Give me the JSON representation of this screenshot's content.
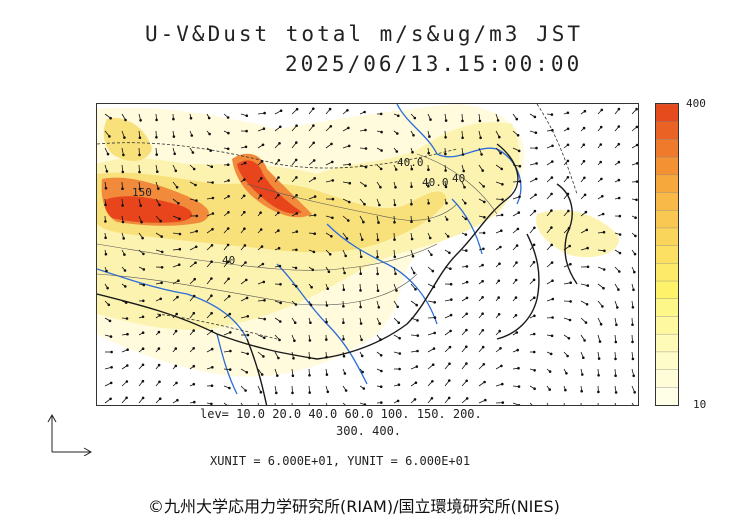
{
  "title": {
    "line1": "U-V&Dust total m/s&ug/m3 JST",
    "line2": "2025/06/13.15:00:00"
  },
  "map": {
    "contour_labels": [
      "40.0",
      "40.0",
      "40",
      "40",
      "150"
    ],
    "colors": {
      "land_line": "#1a1a1a",
      "river": "#2b6cd8",
      "very_light": "#fffbdc",
      "light": "#fdf3b0",
      "mid": "#f8e07a",
      "orange": "#f28a3c",
      "red": "#e8451c"
    }
  },
  "colorbar": {
    "max_label": "400",
    "min_label": "10",
    "bins": [
      "#e54b1d",
      "#ea6324",
      "#ef7a2c",
      "#f39133",
      "#f7a83c",
      "#f8b948",
      "#f9c853",
      "#fad55c",
      "#fbe063",
      "#fcea68",
      "#fdf26a",
      "#fdf688",
      "#fef8a1",
      "#fefab8",
      "#fefcc8",
      "#fffdd8",
      "#fffee6"
    ]
  },
  "legend": {
    "levels_line1": "lev= 10.0 20.0 40.0 60.0 100. 150. 200.",
    "levels_line2": "300. 400.",
    "unit_text": "XUNIT = 6.000E+01, YUNIT = 6.000E+01"
  },
  "credit": "©九州大学応用力学研究所(RIAM)/国立環境研究所(NIES)"
}
